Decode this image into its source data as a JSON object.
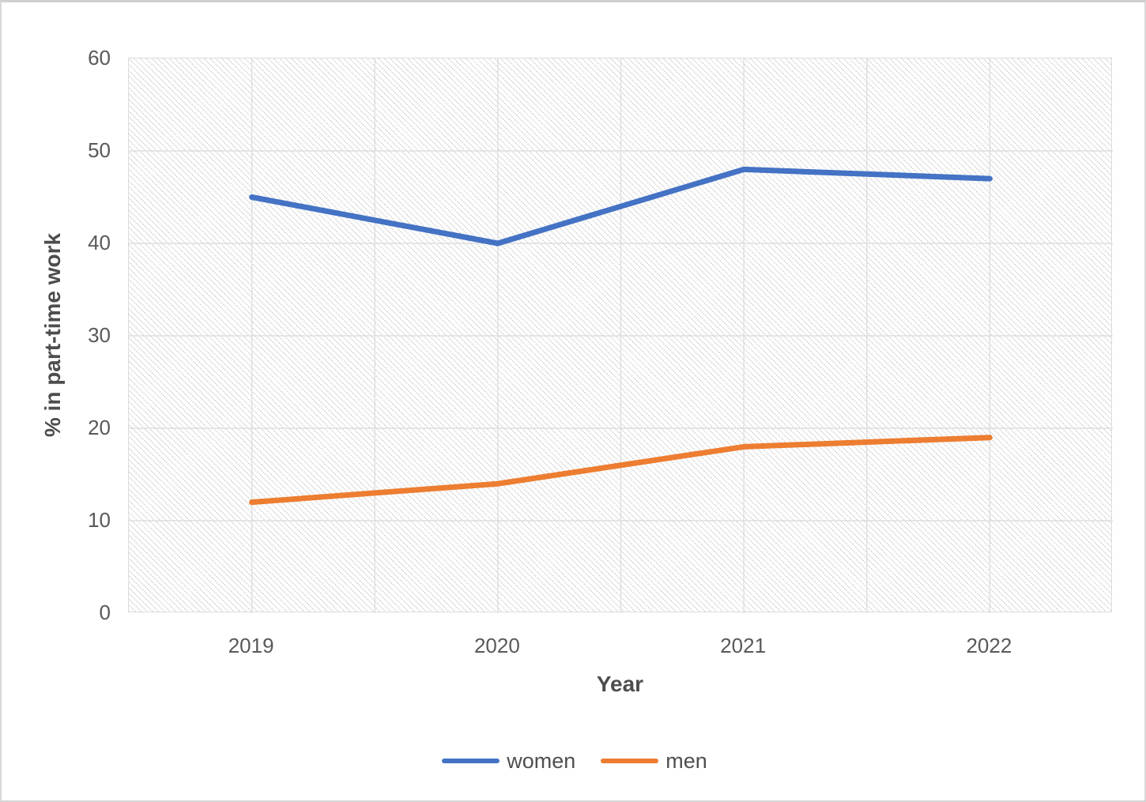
{
  "chart_data": {
    "type": "line",
    "categories": [
      "2019",
      "2020",
      "2021",
      "2022"
    ],
    "series": [
      {
        "name": "women",
        "values": [
          45,
          40,
          48,
          47
        ],
        "color": "#4472C4"
      },
      {
        "name": "men",
        "values": [
          12,
          14,
          18,
          19
        ],
        "color": "#ED7D31"
      }
    ],
    "title": "",
    "xlabel": "Year",
    "ylabel": "% in part-time work",
    "ylim": [
      0,
      60
    ],
    "yticks": [
      0,
      10,
      20,
      30,
      40,
      50,
      60
    ],
    "grid": true,
    "x_subdivisions": 8,
    "legend_position": "bottom",
    "plot_background": "dotted-diagonal-hatch"
  },
  "styles": {
    "gridline_color": "#dedede",
    "axis_line_color": "#dcdcdc",
    "tick_text_color": "#595959",
    "title_text_color": "#4d4d4d",
    "line_width": 7
  }
}
